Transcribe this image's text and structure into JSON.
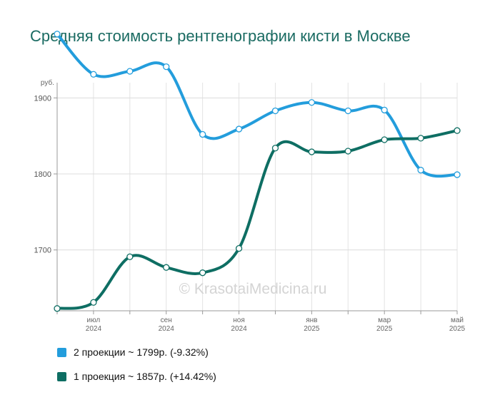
{
  "chart_data": {
    "type": "line",
    "title": "Средняя стоимость рентгенографии кисти в Москве",
    "y_unit_label": "руб.",
    "ylim": [
      1620,
      1920
    ],
    "yticks": [
      1700,
      1800,
      1900
    ],
    "x": [
      0,
      1,
      2,
      3,
      4,
      5,
      6,
      7,
      8,
      9,
      10,
      11
    ],
    "xticks": [
      {
        "i": 1,
        "month": "июл",
        "year": "2024"
      },
      {
        "i": 3,
        "month": "сен",
        "year": "2024"
      },
      {
        "i": 5,
        "month": "ноя",
        "year": "2024"
      },
      {
        "i": 7,
        "month": "янв",
        "year": "2025"
      },
      {
        "i": 9,
        "month": "мар",
        "year": "2025"
      },
      {
        "i": 11,
        "month": "май",
        "year": "2025"
      }
    ],
    "grid": true,
    "legend_position": "bottom-left",
    "watermark": "© KrasotaiMedicina.ru",
    "series": [
      {
        "name": "2 проекции",
        "color": "#239ddc",
        "values": [
          1984,
          1931,
          1935,
          1941,
          1852,
          1859,
          1883,
          1894,
          1883,
          1884,
          1805,
          1799
        ],
        "legend": "2 проекции ~ 1799р. (-9.32%)"
      },
      {
        "name": "1 проекция",
        "color": "#0e6e63",
        "values": [
          1623,
          1631,
          1691,
          1677,
          1670,
          1702,
          1834,
          1829,
          1830,
          1845,
          1847,
          1857
        ],
        "legend": "1 проекция ~ 1857р. (+14.42%)"
      }
    ]
  }
}
